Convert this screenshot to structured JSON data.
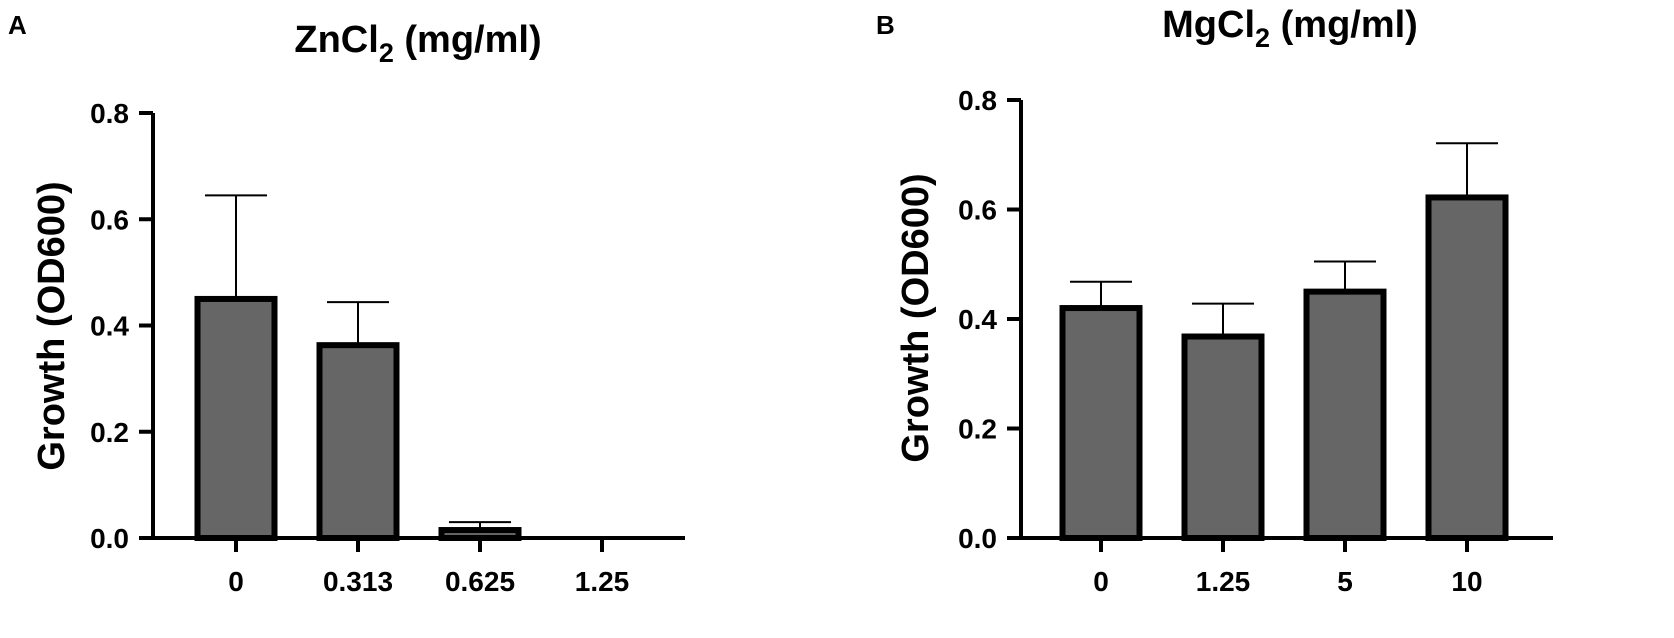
{
  "chart_data": [
    {
      "panel": "A",
      "type": "bar",
      "title": {
        "base": "ZnCl",
        "subscript": "2",
        "rest": " (mg/ml)"
      },
      "xlabel": "",
      "ylabel": "Growth (OD600)",
      "ylim": [
        0,
        0.8
      ],
      "yticks": [
        "0.0",
        "0.2",
        "0.4",
        "0.6",
        "0.8"
      ],
      "categories": [
        "0",
        "0.313",
        "0.625",
        "1.25"
      ],
      "values": [
        0.45,
        0.363,
        0.015,
        0.0
      ],
      "error_upper": [
        0.645,
        0.444,
        0.03,
        0.0
      ],
      "grid": false,
      "bar_color": "#666666"
    },
    {
      "panel": "B",
      "type": "bar",
      "title": {
        "base": "MgCl",
        "subscript": "2",
        "rest": " (mg/ml)"
      },
      "xlabel": "",
      "ylabel": "Growth (OD600)",
      "ylim": [
        0,
        0.8
      ],
      "yticks": [
        "0.0",
        "0.2",
        "0.4",
        "0.6",
        "0.8"
      ],
      "categories": [
        "0",
        "1.25",
        "5",
        "10"
      ],
      "values": [
        0.42,
        0.368,
        0.45,
        0.622
      ],
      "error_upper": [
        0.468,
        0.428,
        0.505,
        0.721
      ],
      "grid": false,
      "bar_color": "#666666"
    }
  ]
}
